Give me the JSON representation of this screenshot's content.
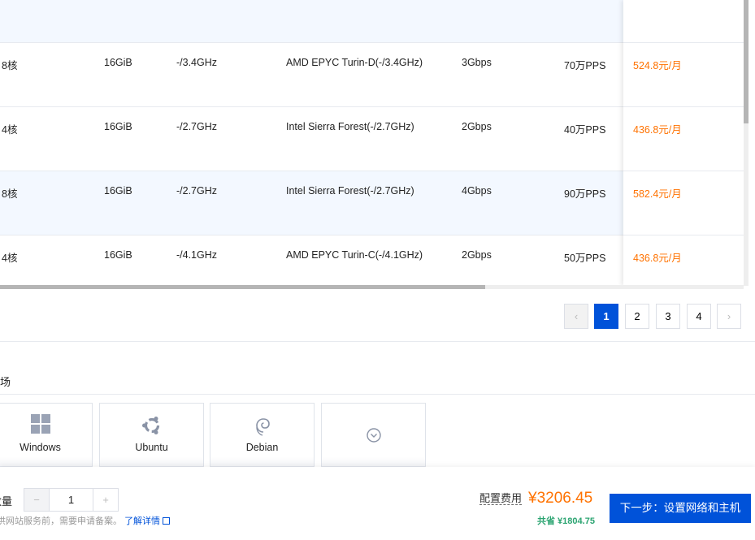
{
  "table": {
    "rows": [
      {
        "cpu": "8核",
        "memory": "16GiB",
        "freq": "-/3.4GHz",
        "processor": "AMD EPYC Turin-D(-/3.4GHz)",
        "bandwidth": "3Gbps",
        "pps": "70万PPS",
        "price": "524.8元/月",
        "highlighted": false
      },
      {
        "cpu": "4核",
        "memory": "16GiB",
        "freq": "-/2.7GHz",
        "processor": "Intel Sierra Forest(-/2.7GHz)",
        "bandwidth": "2Gbps",
        "pps": "40万PPS",
        "price": "436.8元/月",
        "highlighted": false
      },
      {
        "cpu": "8核",
        "memory": "16GiB",
        "freq": "-/2.7GHz",
        "processor": "Intel Sierra Forest(-/2.7GHz)",
        "bandwidth": "4Gbps",
        "pps": "90万PPS",
        "price": "582.4元/月",
        "highlighted": true
      },
      {
        "cpu": "4核",
        "memory": "16GiB",
        "freq": "-/4.1GHz",
        "processor": "AMD EPYC Turin-C(-/4.1GHz)",
        "bandwidth": "2Gbps",
        "pps": "50万PPS",
        "price": "436.8元/月",
        "highlighted": false
      }
    ]
  },
  "pagination": {
    "prev": "‹",
    "next": "›",
    "pages": [
      "1",
      "2",
      "3",
      "4"
    ],
    "current": "1"
  },
  "image_section": {
    "label": "场",
    "os": [
      {
        "label": "Windows",
        "icon": "windows-icon"
      },
      {
        "label": "Ubuntu",
        "icon": "ubuntu-icon"
      },
      {
        "label": "Debian",
        "icon": "debian-icon"
      },
      {
        "label": "",
        "icon": "chevron-down-circle-icon"
      }
    ]
  },
  "quantity": {
    "label": "数量",
    "value": "1",
    "minus": "−",
    "plus": "+"
  },
  "notice": {
    "text": "供网站服务前，需要申请备案。",
    "link": "了解详情"
  },
  "cost": {
    "label": "配置费用",
    "price": "¥3206.45",
    "saving": "共省 ¥1804.75"
  },
  "next_button": "下一步：设置网络和主机",
  "colors": {
    "accent": "#0052d9",
    "price": "#ff7200",
    "saving": "#2ba471"
  }
}
